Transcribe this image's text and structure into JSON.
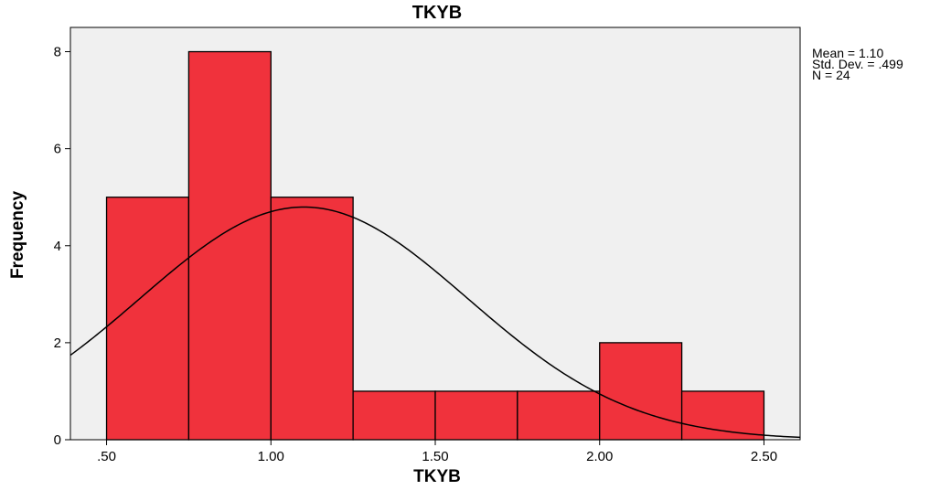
{
  "chart_data": {
    "type": "bar",
    "title": "TKYB",
    "xlabel": "TKYB",
    "ylabel": "Frequency",
    "bin_edges": [
      0.5,
      0.75,
      1.0,
      1.25,
      1.5,
      1.75,
      2.0,
      2.25,
      2.5
    ],
    "values": [
      5,
      8,
      5,
      1,
      1,
      1,
      2,
      1
    ],
    "xlim": [
      0.39,
      2.61
    ],
    "ylim": [
      0,
      8.5
    ],
    "x_ticks": [
      0.5,
      1.0,
      1.5,
      2.0,
      2.5
    ],
    "x_tick_labels": [
      ".50",
      "1.00",
      "1.50",
      "2.00",
      "2.50"
    ],
    "y_ticks": [
      0,
      2,
      4,
      6,
      8
    ],
    "y_tick_labels": [
      "0",
      "2",
      "4",
      "6",
      "8"
    ],
    "normal_curve": {
      "mean": 1.1,
      "std_dev": 0.499,
      "n": 24,
      "bin_width": 0.25
    },
    "stats": {
      "mean_label": "Mean = 1.10",
      "std_label": "Std. Dev. = .499",
      "n_label": "N = 24"
    },
    "colors": {
      "bar": "#f0323c",
      "plot_bg": "#f0f0f0",
      "curve": "#000000"
    },
    "grid": false,
    "legend": "right"
  }
}
